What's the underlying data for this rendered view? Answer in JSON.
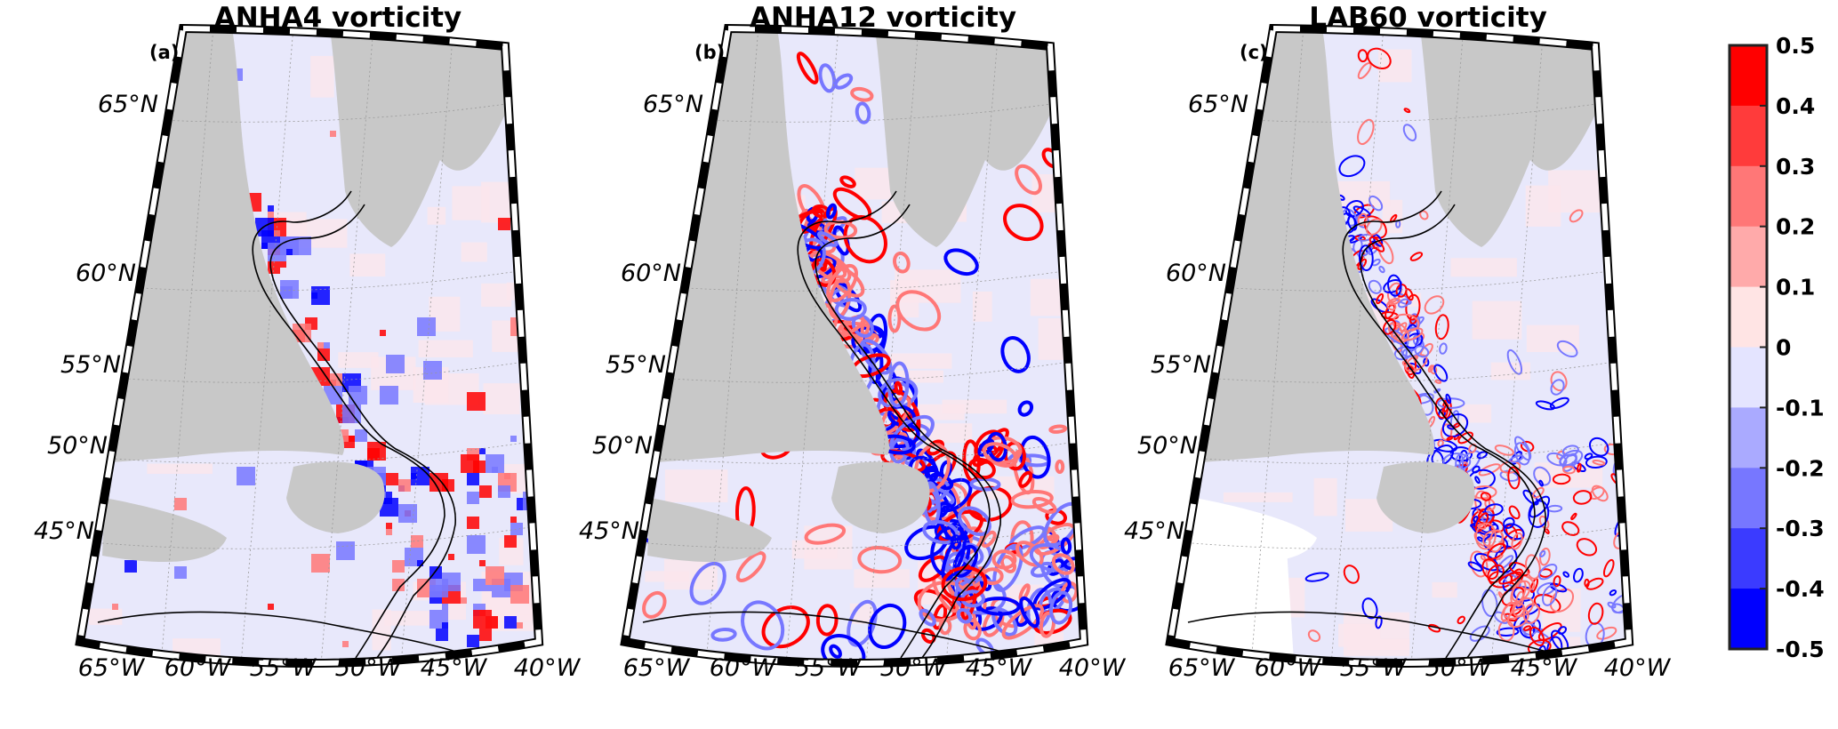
{
  "figure": {
    "panels": [
      {
        "id": "a",
        "label": "(a)",
        "title": "ANHA4 vorticity",
        "style": "coarse"
      },
      {
        "id": "b",
        "label": "(b)",
        "title": "ANHA12 vorticity",
        "style": "medium"
      },
      {
        "id": "c",
        "label": "(c)",
        "title": "LAB60 vorticity",
        "style": "fine"
      }
    ],
    "latitude_labels": [
      "65°N",
      "60°N",
      "55°N",
      "50°N",
      "45°N"
    ],
    "longitude_labels": [
      "65°W",
      "60°W",
      "55°W",
      "50°W",
      "45°W",
      "40°W"
    ],
    "colorbar": {
      "ticks": [
        "0.5",
        "0.4",
        "0.3",
        "0.2",
        "0.1",
        "0",
        "-0.1",
        "-0.2",
        "-0.3",
        "-0.4",
        "-0.5"
      ],
      "range": [
        -0.5,
        0.5
      ],
      "bins": [
        "#ff0000",
        "#ff3b3b",
        "#ff7777",
        "#ffaaaa",
        "#ffe4e4",
        "#e4e4ff",
        "#aaaaff",
        "#7777ff",
        "#3b3bff",
        "#0000ff"
      ]
    },
    "colors": {
      "land": "#c8c8c8",
      "ocean_base": "#e8e8fb",
      "contour": "#000000"
    }
  }
}
